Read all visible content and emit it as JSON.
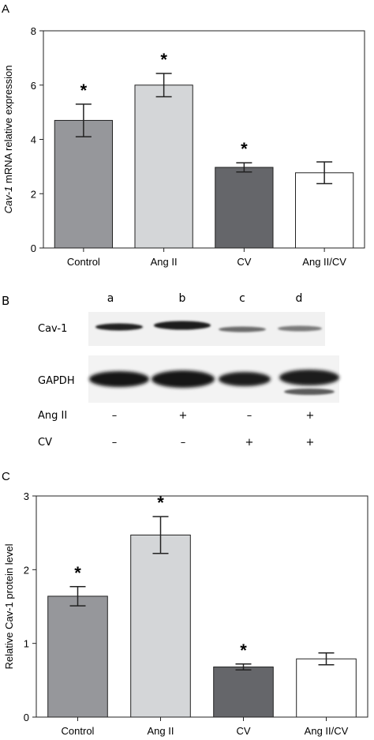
{
  "panels": {
    "a": "A",
    "b": "B",
    "c": "C"
  },
  "chart_data": [
    {
      "type": "bar",
      "panel": "A",
      "categories": [
        "Control",
        "Ang II",
        "CV",
        "Ang II/CV"
      ],
      "values": [
        4.7,
        6.0,
        2.97,
        2.77
      ],
      "errors": [
        0.6,
        0.43,
        0.17,
        0.4
      ],
      "significance": [
        "*",
        "*",
        "*",
        ""
      ],
      "colors": [
        "#96979b",
        "#d4d6d8",
        "#65666a",
        "#ffffff"
      ],
      "ylabel_italic": "Cav-1",
      "ylabel_rest": " mRNA relative expression",
      "ylim": [
        0,
        8
      ],
      "yticks": [
        0,
        2,
        4,
        6,
        8
      ],
      "grid": false
    },
    {
      "type": "bar",
      "panel": "C",
      "categories": [
        "Control",
        "Ang II",
        "CV",
        "Ang II/CV"
      ],
      "values": [
        1.64,
        2.47,
        0.68,
        0.79
      ],
      "errors": [
        0.13,
        0.25,
        0.04,
        0.08
      ],
      "significance": [
        "*",
        "*",
        "*",
        ""
      ],
      "colors": [
        "#96979b",
        "#d4d6d8",
        "#65666a",
        "#ffffff"
      ],
      "ylabel": "Relative Cav-1 protein level",
      "ylim": [
        0,
        3
      ],
      "yticks": [
        0,
        1,
        2,
        3
      ],
      "grid": false
    }
  ],
  "blot": {
    "lanes": [
      "a",
      "b",
      "c",
      "d"
    ],
    "rows": [
      "Cav-1",
      "GAPDH"
    ],
    "treatments": [
      {
        "label": "Ang II",
        "values": [
          "–",
          "+",
          "–",
          "+"
        ]
      },
      {
        "label": "CV",
        "values": [
          "–",
          "–",
          "+",
          "+"
        ]
      }
    ]
  }
}
